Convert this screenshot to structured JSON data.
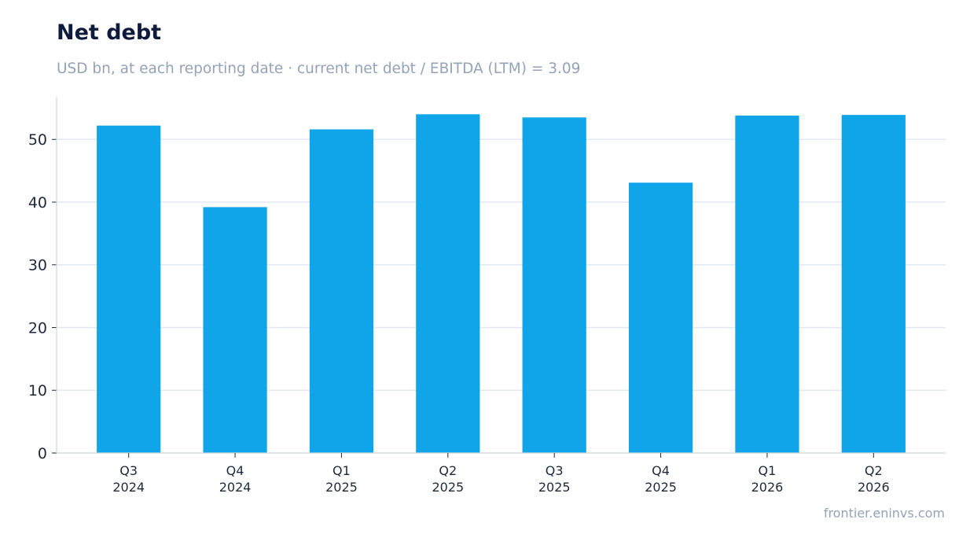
{
  "header": {
    "title": "Net debt",
    "subtitle": "USD bn, at each reporting date · current net debt / EBITDA (LTM) = 3.09"
  },
  "footer": {
    "source": "frontier.eninvs.com"
  },
  "colors": {
    "bar": "#10a5e8",
    "grid": "#e2e8f0",
    "axis": "#cbd5e1",
    "tick_text": "#1e293b",
    "title": "#0f1b3d",
    "muted": "#94a3b8"
  },
  "chart_data": {
    "type": "bar",
    "title": "Net debt",
    "subtitle": "USD bn, at each reporting date · current net debt / EBITDA (LTM) = 3.09",
    "xlabel": "",
    "ylabel": "",
    "categories": [
      [
        "Q3",
        "2024"
      ],
      [
        "Q4",
        "2024"
      ],
      [
        "Q1",
        "2025"
      ],
      [
        "Q2",
        "2025"
      ],
      [
        "Q3",
        "2025"
      ],
      [
        "Q4",
        "2025"
      ],
      [
        "Q1",
        "2026"
      ],
      [
        "Q2",
        "2026"
      ]
    ],
    "values": [
      52.2,
      39.2,
      51.6,
      54.0,
      53.5,
      43.1,
      53.8,
      53.9
    ],
    "ylim": [
      0,
      56.8
    ],
    "yticks": [
      0,
      10,
      20,
      30,
      40,
      50
    ],
    "grid": true,
    "legend": "none"
  }
}
